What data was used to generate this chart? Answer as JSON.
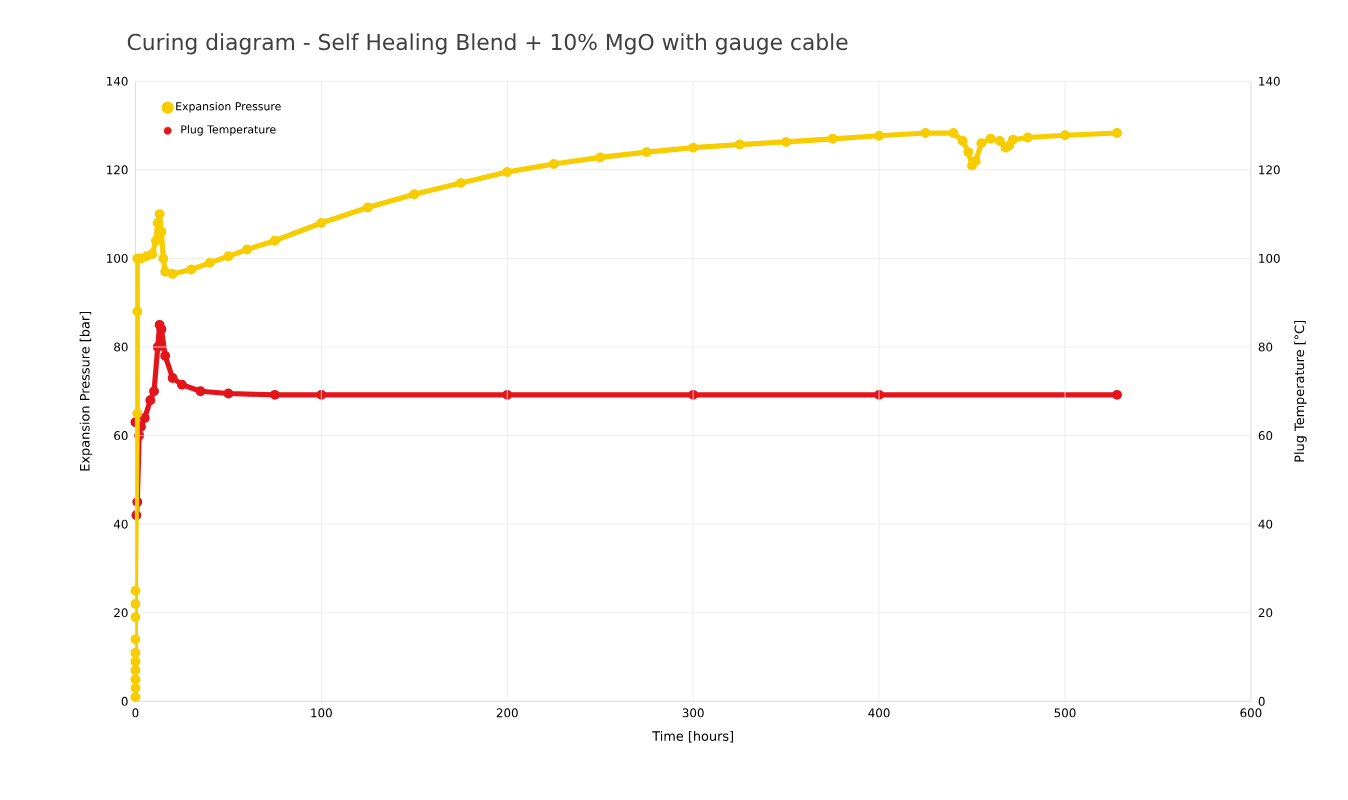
{
  "chart_data": {
    "type": "line",
    "title": "Curing diagram - Self Healing Blend + 10% MgO with gauge cable",
    "xlabel": "Time [hours]",
    "ylabel": "Expansion Pressure [bar]",
    "y2label": "Plug Temperature [°C]",
    "xlim": [
      0,
      600
    ],
    "xticks": [
      0,
      100,
      200,
      300,
      400,
      500,
      600
    ],
    "ylim": [
      0,
      140
    ],
    "yticks": [
      0,
      20,
      40,
      60,
      80,
      100,
      120,
      140
    ],
    "y2lim": [
      0,
      140
    ],
    "y2ticks": [
      0,
      20,
      40,
      60,
      80,
      100,
      120,
      140
    ],
    "grid": true,
    "legend": "top left",
    "marker": "circle",
    "series": [
      {
        "name": "Expansion Pressure",
        "color": "#f7cd00",
        "x": [
          0,
          0,
          0,
          0,
          0,
          0,
          0,
          0,
          0,
          0,
          1,
          1,
          1,
          3,
          6,
          9,
          11,
          12,
          13,
          14,
          15,
          16,
          20,
          30,
          40,
          50,
          60,
          75,
          100,
          125,
          150,
          175,
          200,
          225,
          250,
          275,
          300,
          325,
          350,
          375,
          400,
          425,
          440,
          445,
          448,
          450,
          452,
          455,
          460,
          465,
          468,
          470,
          472,
          480,
          500,
          528
        ],
        "values": [
          1,
          3,
          5,
          7,
          9,
          11,
          14,
          19,
          22,
          25,
          65,
          88,
          100,
          100,
          100.5,
          101,
          104,
          108,
          110,
          106,
          100,
          97,
          96.5,
          97.5,
          99,
          100.5,
          102,
          104,
          108,
          111.5,
          114.5,
          117,
          119.5,
          121.3,
          122.8,
          124,
          125,
          125.7,
          126.3,
          127,
          127.7,
          128.3,
          128.3,
          126.5,
          124,
          121,
          122,
          126,
          127,
          126.5,
          125,
          125.5,
          126.8,
          127.3,
          127.8,
          128.3
        ]
      },
      {
        "name": "Plug Temperature",
        "color": "#e3151b",
        "axis": "y2",
        "x": [
          0,
          0.5,
          1,
          2,
          3,
          5,
          8,
          10,
          12,
          13,
          14,
          16,
          20,
          25,
          35,
          50,
          75,
          100,
          200,
          300,
          400,
          528
        ],
        "values": [
          63,
          42,
          45,
          60,
          62,
          64,
          68,
          70,
          80,
          85,
          84,
          78,
          73,
          71.5,
          70,
          69.5,
          69.2,
          69.2,
          69.2,
          69.2,
          69.2,
          69.2
        ]
      }
    ]
  }
}
